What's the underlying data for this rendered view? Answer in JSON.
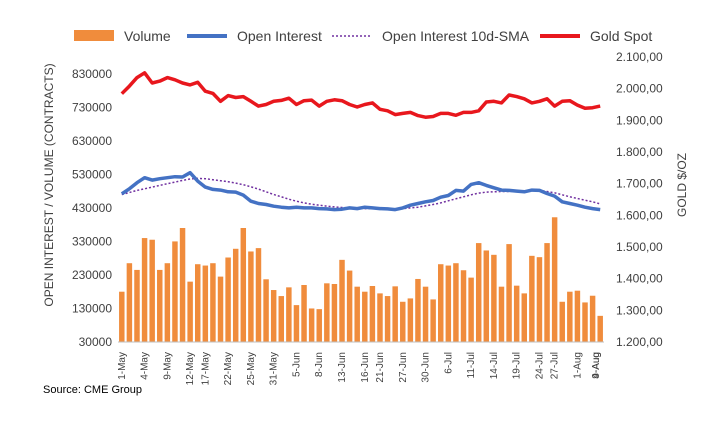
{
  "chart_data": {
    "type": "combo",
    "legend": {
      "position": "top",
      "entries": [
        {
          "name": "Volume",
          "style": "bar",
          "color": "#f08c3c"
        },
        {
          "name": "Open Interest",
          "style": "line",
          "color": "#4472c4"
        },
        {
          "name": "Open Interest 10d-SMA",
          "style": "dotted-line",
          "color": "#7030a0"
        },
        {
          "name": "Gold Spot",
          "style": "line",
          "color": "#e8171d"
        }
      ]
    },
    "y_left": {
      "label": "OPEN INTEREST / VOLUME (CONTRACTS)",
      "ticks": [
        "830000",
        "730000",
        "630000",
        "530000",
        "430000",
        "330000",
        "230000",
        "130000",
        "30000"
      ],
      "range": [
        30000,
        880000
      ]
    },
    "y_right": {
      "label": "GOLD $/OZ",
      "ticks": [
        "2.100,00",
        "2.000,00",
        "1.900,00",
        "1.800,00",
        "1.700,00",
        "1.600,00",
        "1.500,00",
        "1.400,00",
        "1.300,00",
        "1.200,00"
      ],
      "range": [
        1200,
        2100
      ]
    },
    "x_tick_labels": [
      "1-May",
      "4-May",
      "9-May",
      "12-May",
      "17-May",
      "22-May",
      "25-May",
      "31-May",
      "5-Jun",
      "8-Jun",
      "13-Jun",
      "16-Jun",
      "21-Jun",
      "27-Jun",
      "30-Jun",
      "6-Jul",
      "11-Jul",
      "14-Jul",
      "19-Jul",
      "24-Jul",
      "27-Jul",
      "1-Aug",
      "4-Aug",
      "9-Aug"
    ],
    "volume": [
      180000,
      265000,
      245000,
      340000,
      335000,
      245000,
      265000,
      330000,
      370000,
      210000,
      262000,
      258000,
      265000,
      225000,
      282000,
      308000,
      370000,
      300000,
      310000,
      217000,
      185000,
      167000,
      193000,
      140000,
      200000,
      130000,
      128000,
      205000,
      203000,
      275000,
      243000,
      195000,
      180000,
      197000,
      175000,
      167000,
      196000,
      150000,
      160000,
      218000,
      195000,
      157000,
      262000,
      258000,
      265000,
      244000,
      222000,
      325000,
      303000,
      290000,
      195000,
      322000,
      198000,
      175000,
      287000,
      283000,
      325000,
      402000,
      150000,
      180000,
      183000,
      148000,
      168000,
      108000
    ],
    "open_interest": [
      472000,
      487000,
      505000,
      520000,
      513000,
      517000,
      520000,
      523000,
      522000,
      535000,
      510000,
      492000,
      485000,
      483000,
      478000,
      477000,
      468000,
      450000,
      443000,
      440000,
      435000,
      432000,
      430000,
      432000,
      430000,
      430000,
      428000,
      427000,
      425000,
      426000,
      430000,
      428000,
      432000,
      430000,
      428000,
      427000,
      425000,
      430000,
      438000,
      443000,
      448000,
      452000,
      462000,
      467000,
      482000,
      480000,
      500000,
      505000,
      497000,
      490000,
      483000,
      482000,
      480000,
      478000,
      483000,
      482000,
      473000,
      465000,
      448000,
      443000,
      438000,
      432000,
      428000,
      425000
    ],
    "open_interest_sma": [
      470000,
      476000,
      482000,
      487000,
      492000,
      497000,
      502000,
      507000,
      512000,
      516000,
      518000,
      517000,
      514000,
      511000,
      508000,
      504000,
      499000,
      493000,
      486000,
      478000,
      470000,
      463000,
      456000,
      450000,
      445000,
      441000,
      438000,
      435000,
      433000,
      431000,
      430000,
      429000,
      428000,
      428000,
      427000,
      427000,
      427000,
      428000,
      430000,
      432000,
      436000,
      440000,
      445000,
      451000,
      457000,
      463000,
      469000,
      474000,
      477000,
      478000,
      479000,
      479000,
      480000,
      481000,
      482000,
      482000,
      479000,
      475000,
      469000,
      463000,
      458000,
      453000,
      448000,
      442000
    ],
    "gold_spot": [
      1984,
      2008,
      2035,
      2050,
      2018,
      2024,
      2035,
      2028,
      2018,
      2012,
      2020,
      1992,
      1985,
      1960,
      1978,
      1972,
      1975,
      1960,
      1945,
      1950,
      1960,
      1963,
      1970,
      1950,
      1962,
      1964,
      1945,
      1960,
      1965,
      1962,
      1950,
      1942,
      1950,
      1955,
      1935,
      1930,
      1918,
      1922,
      1925,
      1915,
      1910,
      1912,
      1922,
      1922,
      1916,
      1925,
      1925,
      1930,
      1958,
      1960,
      1955,
      1980,
      1975,
      1968,
      1955,
      1960,
      1968,
      1945,
      1960,
      1962,
      1948,
      1938,
      1940,
      1945
    ]
  },
  "source": "Source: CME Group"
}
